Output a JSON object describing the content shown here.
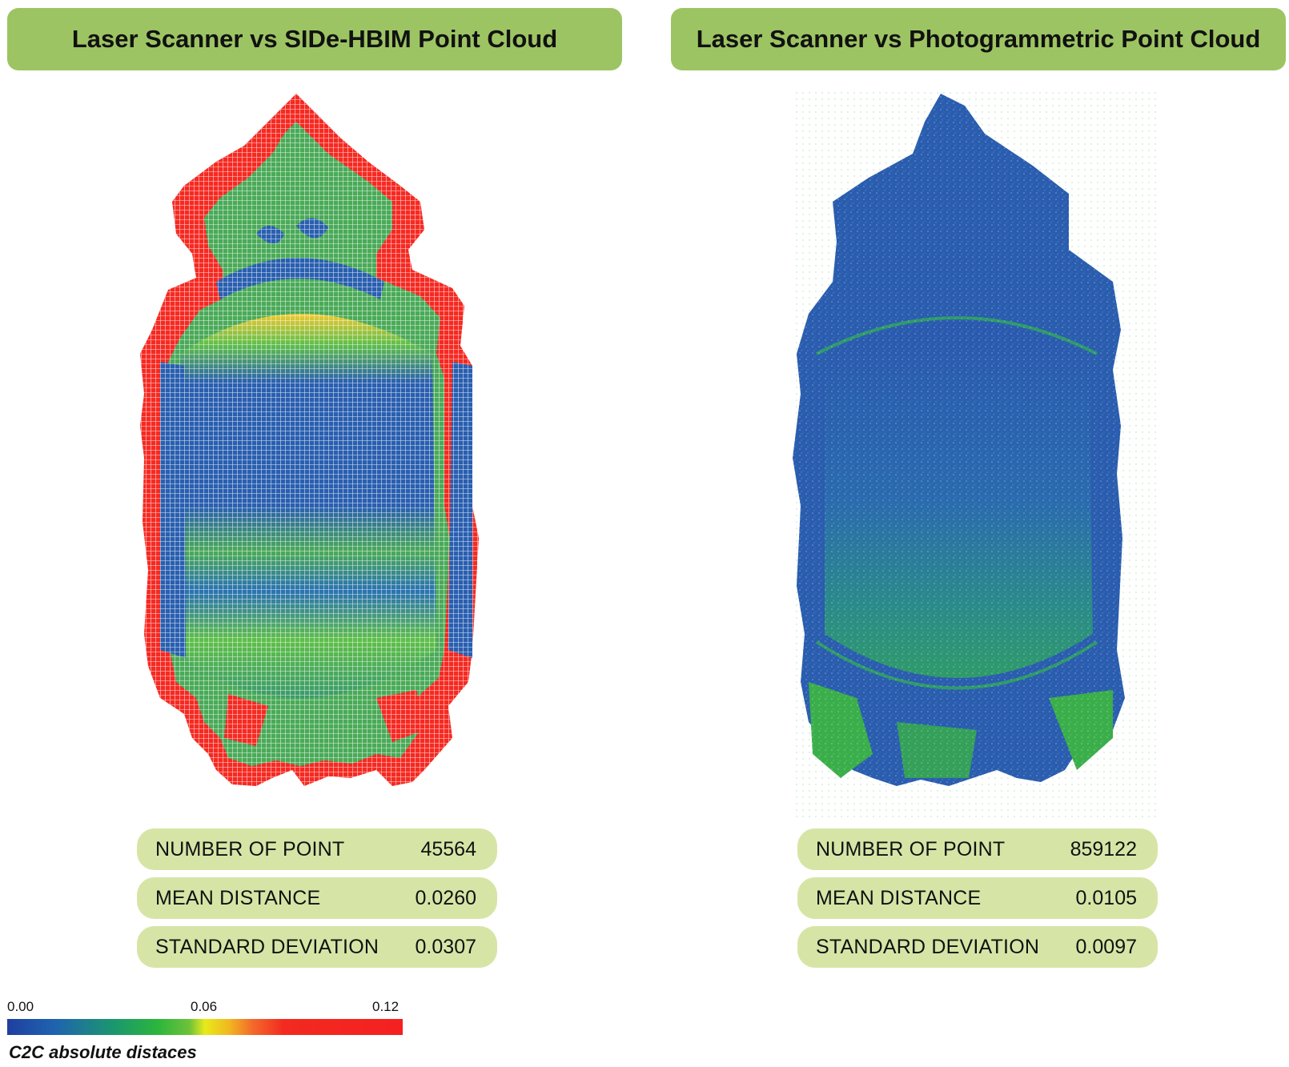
{
  "panels": [
    {
      "title": "Laser Scanner vs SIDe-HBIM Point Cloud",
      "stats": [
        {
          "label": "NUMBER OF POINT",
          "value": "45564"
        },
        {
          "label": "MEAN DISTANCE",
          "value": "0.0260"
        },
        {
          "label": "STANDARD DEVIATION",
          "value": "0.0307"
        }
      ]
    },
    {
      "title": "Laser Scanner vs Photogrammetric Point Cloud",
      "stats": [
        {
          "label": "NUMBER OF POINT",
          "value": "859122"
        },
        {
          "label": "MEAN DISTANCE",
          "value": "0.0105"
        },
        {
          "label": "STANDARD DEVIATION",
          "value": "0.0097"
        }
      ]
    }
  ],
  "legend": {
    "ticks": [
      "0.00",
      "0.06",
      "0.12"
    ],
    "caption": "C2C absolute distaces",
    "colors": [
      "#1f3fa0",
      "#1c9a6a",
      "#2cb53c",
      "#e8ea1a",
      "#f36a2a",
      "#f22a20"
    ]
  }
}
